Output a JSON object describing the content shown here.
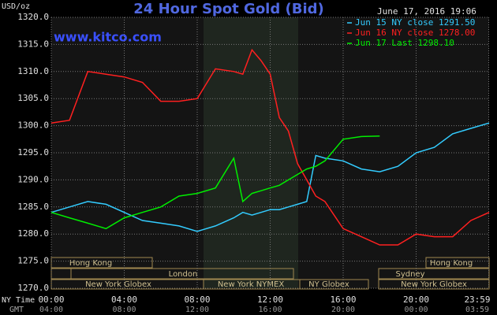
{
  "chart_data": {
    "type": "line",
    "title": "24 Hour Spot Gold (Bid)",
    "y_label": "USD/oz",
    "watermark": "www.kitco.com",
    "timestamp": "June 17, 2016 19:06",
    "x_label": "NY Time",
    "x2_label": "GMT",
    "x": [
      0,
      1,
      2,
      3,
      4,
      5,
      6,
      7,
      8,
      9,
      10,
      10.5,
      11,
      11.5,
      12,
      12.5,
      13,
      13.5,
      14,
      14.5,
      15,
      16,
      17,
      18,
      19,
      20,
      21,
      22,
      23,
      24
    ],
    "series": [
      {
        "name": "Jun 15 NY close 1291.50",
        "color": "#33ccff",
        "values": [
          1284,
          1285,
          1286,
          1285.5,
          1284,
          1282.5,
          1282,
          1281.5,
          1280.5,
          1281.5,
          1283,
          1284,
          1283.5,
          1284,
          1284.5,
          1284.5,
          1285,
          1285.5,
          1286,
          1294.5,
          1294,
          1293.5,
          1292,
          1291.5,
          1292.5,
          1295,
          1296,
          1298.5,
          1299.5,
          1300.5
        ]
      },
      {
        "name": "Jun 16 NY close 1278.00",
        "color": "#ff2020",
        "values": [
          1300.5,
          1301,
          1310,
          1309.5,
          1309,
          1308,
          1304.5,
          1304.5,
          1305,
          1310.5,
          1310,
          1309.5,
          1314,
          1312,
          1309.5,
          1301.5,
          1299,
          1293,
          1290,
          1287,
          1286,
          1281,
          1279.5,
          1278,
          1278,
          1280,
          1279.5,
          1279.5,
          1282.5,
          1284
        ]
      },
      {
        "name": "Jun 17 Last 1298.10",
        "color": "#00ee00",
        "values": [
          1284,
          1283,
          1282,
          1281,
          1283,
          1284,
          1285,
          1287,
          1287.5,
          1288.5,
          1294,
          1286,
          1287.5,
          1288,
          1288.5,
          1289,
          1290,
          1291,
          1292,
          1292.5,
          1293.5,
          1297.5,
          1298,
          1298.1,
          null,
          null,
          null,
          null,
          null,
          null
        ]
      }
    ],
    "xlim": [
      0,
      24
    ],
    "xticks": [
      {
        "value": 0,
        "label": "00:00"
      },
      {
        "value": 4,
        "label": "04:00"
      },
      {
        "value": 8,
        "label": "08:00"
      },
      {
        "value": 12,
        "label": "12:00"
      },
      {
        "value": 16,
        "label": "16:00"
      },
      {
        "value": 20,
        "label": "20:00"
      },
      {
        "value": 23.98,
        "label": "23:59"
      }
    ],
    "x2ticks": [
      {
        "value": 0,
        "label": "04:00"
      },
      {
        "value": 4,
        "label": "08:00"
      },
      {
        "value": 8,
        "label": "12:00"
      },
      {
        "value": 12,
        "label": "16:00"
      },
      {
        "value": 16,
        "label": "20:00"
      },
      {
        "value": 20,
        "label": "00:00"
      },
      {
        "value": 23.98,
        "label": "03:59"
      }
    ],
    "ylim": [
      1270,
      1320
    ],
    "yticks": [
      {
        "value": 1270,
        "label": "1270.0"
      },
      {
        "value": 1275,
        "label": "1275.0"
      },
      {
        "value": 1280,
        "label": "1280.0"
      },
      {
        "value": 1285,
        "label": "1285.0"
      },
      {
        "value": 1290,
        "label": "1290.0"
      },
      {
        "value": 1295,
        "label": "1295.0"
      },
      {
        "value": 1300,
        "label": "1300.0"
      },
      {
        "value": 1305,
        "label": "1305.0"
      },
      {
        "value": 1310,
        "label": "1310.0"
      },
      {
        "value": 1315,
        "label": "1315.0"
      },
      {
        "value": 1320,
        "label": "1320.0"
      }
    ],
    "grid": true,
    "legend": "upper right",
    "sessions": [
      "Hong Kong",
      "London",
      "New York Globex",
      "New York NYMEX",
      "NY Globex",
      "Sydney",
      "Hong Kong",
      "New York Globex"
    ]
  }
}
